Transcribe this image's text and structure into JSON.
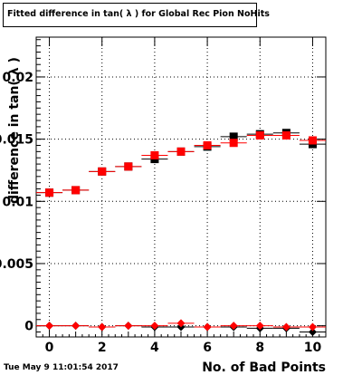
{
  "chart_data": {
    "type": "scatter",
    "title": "Fitted difference in tan( λ ) for Global Rec Pion NoHits",
    "xlabel": "No. of Bad Points",
    "ylabel": "difference in tan( λ )",
    "xlim": [
      -0.5,
      10.5
    ],
    "ylim": [
      -0.0009,
      0.0232
    ],
    "grid": true,
    "x_ticks": [
      0,
      2,
      4,
      6,
      8,
      10
    ],
    "x_tick_labels": [
      "0",
      "2",
      "4",
      "6",
      "8",
      "10"
    ],
    "y_ticks": [
      0,
      0.005,
      0.01,
      0.015,
      0.02
    ],
    "y_tick_labels": [
      "0",
      "0.005",
      "0.01",
      "0.015",
      "0.02"
    ],
    "series": [
      {
        "marker": "square",
        "color": "#000000",
        "x": [
          0,
          1,
          2,
          3,
          4,
          5,
          6,
          7,
          8,
          9,
          10
        ],
        "y": [
          0.0107,
          0.0109,
          0.0124,
          0.0128,
          0.0134,
          0.014,
          0.0144,
          0.0152,
          0.0154,
          0.0155,
          0.0146
        ]
      },
      {
        "marker": "square",
        "color": "#ff0000",
        "x": [
          0,
          1,
          2,
          3,
          4,
          5,
          6,
          7,
          8,
          9,
          10
        ],
        "y": [
          0.0107,
          0.0109,
          0.0124,
          0.0128,
          0.0137,
          0.014,
          0.0145,
          0.0147,
          0.0153,
          0.0153,
          0.0149
        ]
      },
      {
        "marker": "diamond",
        "color": "#000000",
        "x": [
          0,
          1,
          2,
          3,
          4,
          5,
          6,
          7,
          8,
          9,
          10
        ],
        "y": [
          0.0,
          0.0,
          -0.0001,
          0.0,
          -0.0001,
          -0.0001,
          -0.0001,
          -0.0001,
          -0.0002,
          -0.0002,
          -0.0005
        ]
      },
      {
        "marker": "diamond",
        "color": "#ff0000",
        "x": [
          0,
          1,
          2,
          3,
          4,
          5,
          6,
          7,
          8,
          9,
          10
        ],
        "y": [
          0.0,
          0.0,
          -0.0001,
          0.0,
          0.0,
          0.0002,
          -0.0001,
          0.0,
          0.0,
          -0.0001,
          -0.0001
        ]
      }
    ]
  },
  "footer": {
    "timestamp": "Tue May  9 11:01:54 2017"
  }
}
